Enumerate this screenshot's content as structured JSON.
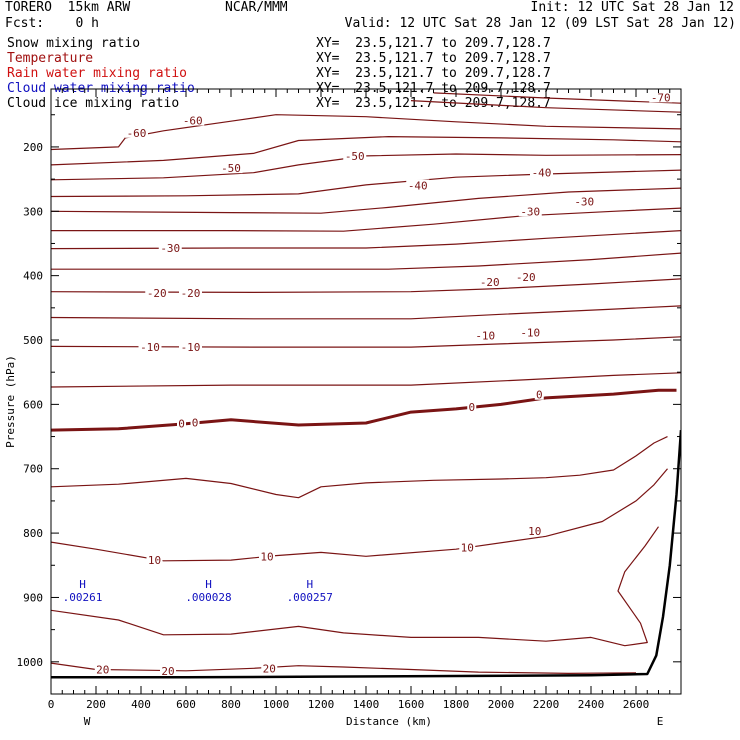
{
  "header": {
    "model": "TORERO  15km ARW",
    "center": "NCAR/MMM",
    "init": "Init: 12 UTC Sat 28 Jan 12",
    "fcst": "Fcst:    0 h",
    "valid": "Valid: 12 UTC Sat 28 Jan 12 (09 LST Sat 28 Jan 12)"
  },
  "fields": [
    {
      "name": "Snow mixing ratio",
      "xy": "XY=  23.5,121.7 to 209.7,128.7",
      "color": "#000000"
    },
    {
      "name": "Temperature",
      "xy": "XY=  23.5,121.7 to 209.7,128.7",
      "color": "#a01010"
    },
    {
      "name": "Rain water mixing ratio",
      "xy": "XY=  23.5,121.7 to 209.7,128.7",
      "color": "#d01010"
    },
    {
      "name": "Cloud water mixing ratio",
      "xy": "XY=  23.5,121.7 to 209.7,128.7",
      "color": "#1010c0"
    },
    {
      "name": "Cloud ice mixing ratio",
      "xy": "XY=  23.5,121.7 to 209.7,128.7",
      "color": "#000000"
    }
  ],
  "chart_data": {
    "type": "cross-section contour",
    "xlabel": "Distance (km)",
    "ylabel": "Pressure (hPa)",
    "xlim": [
      0,
      2800
    ],
    "ylim": [
      1050,
      110
    ],
    "x_ticks": [
      0,
      200,
      400,
      600,
      800,
      1000,
      1200,
      1400,
      1600,
      1800,
      2000,
      2200,
      2400,
      2600
    ],
    "y_ticks": [
      200,
      300,
      400,
      500,
      600,
      700,
      800,
      900,
      1000
    ],
    "left_end_label": "W",
    "right_end_label": "E",
    "temperature_contours": [
      {
        "level": -70,
        "points": [
          [
            1700,
            116
          ],
          [
            2200,
            124
          ],
          [
            2800,
            132
          ]
        ]
      },
      {
        "level": -65,
        "points": [
          [
            1600,
            128
          ],
          [
            2200,
            139
          ],
          [
            2800,
            146
          ]
        ]
      },
      {
        "level": -60,
        "points": [
          [
            0,
            204
          ],
          [
            300,
            200
          ],
          [
            330,
            186
          ],
          [
            500,
            175
          ],
          [
            800,
            160
          ],
          [
            1000,
            150
          ],
          [
            1400,
            153
          ],
          [
            1800,
            161
          ],
          [
            2200,
            168
          ],
          [
            2800,
            172
          ]
        ]
      },
      {
        "level": -55,
        "points": [
          [
            0,
            228
          ],
          [
            500,
            221
          ],
          [
            900,
            210
          ],
          [
            1100,
            190
          ],
          [
            1500,
            184
          ],
          [
            2000,
            186
          ],
          [
            2500,
            189
          ],
          [
            2800,
            192
          ]
        ]
      },
      {
        "level": -50,
        "points": [
          [
            0,
            251
          ],
          [
            500,
            248
          ],
          [
            900,
            240
          ],
          [
            1100,
            228
          ],
          [
            1400,
            214
          ],
          [
            1800,
            211
          ],
          [
            2200,
            213
          ],
          [
            2800,
            212
          ]
        ]
      },
      {
        "level": -45,
        "points": [
          [
            0,
            277
          ],
          [
            600,
            276
          ],
          [
            1100,
            273
          ],
          [
            1400,
            259
          ],
          [
            1800,
            247
          ],
          [
            2200,
            242
          ],
          [
            2800,
            236
          ]
        ]
      },
      {
        "level": -40,
        "points": [
          [
            0,
            300
          ],
          [
            800,
            302
          ],
          [
            1200,
            303
          ],
          [
            1500,
            294
          ],
          [
            1900,
            280
          ],
          [
            2300,
            270
          ],
          [
            2800,
            264
          ]
        ]
      },
      {
        "level": -35,
        "points": [
          [
            0,
            330
          ],
          [
            800,
            330
          ],
          [
            1300,
            331
          ],
          [
            1700,
            320
          ],
          [
            2100,
            307
          ],
          [
            2500,
            300
          ],
          [
            2800,
            295
          ]
        ]
      },
      {
        "level": -30,
        "points": [
          [
            0,
            358
          ],
          [
            800,
            357
          ],
          [
            1400,
            357
          ],
          [
            1800,
            351
          ],
          [
            2200,
            342
          ],
          [
            2800,
            330
          ]
        ]
      },
      {
        "level": -25,
        "points": [
          [
            0,
            390
          ],
          [
            900,
            390
          ],
          [
            1500,
            390
          ],
          [
            1900,
            385
          ],
          [
            2400,
            375
          ],
          [
            2800,
            365
          ]
        ]
      },
      {
        "level": -20,
        "points": [
          [
            0,
            425
          ],
          [
            900,
            426
          ],
          [
            1600,
            425
          ],
          [
            2000,
            420
          ],
          [
            2400,
            413
          ],
          [
            2800,
            405
          ]
        ]
      },
      {
        "level": -15,
        "points": [
          [
            0,
            465
          ],
          [
            900,
            467
          ],
          [
            1600,
            467
          ],
          [
            2000,
            460
          ],
          [
            2500,
            452
          ],
          [
            2800,
            447
          ]
        ]
      },
      {
        "level": -10,
        "points": [
          [
            0,
            510
          ],
          [
            900,
            511
          ],
          [
            1600,
            511
          ],
          [
            2000,
            506
          ],
          [
            2500,
            500
          ],
          [
            2800,
            495
          ]
        ]
      },
      {
        "level": -5,
        "points": [
          [
            0,
            573
          ],
          [
            800,
            570
          ],
          [
            1600,
            570
          ],
          [
            2100,
            562
          ],
          [
            2500,
            555
          ],
          [
            2800,
            551
          ]
        ]
      },
      {
        "level": 0,
        "points": [
          [
            0,
            640
          ],
          [
            300,
            638
          ],
          [
            600,
            630
          ],
          [
            800,
            624
          ],
          [
            1100,
            632
          ],
          [
            1400,
            629
          ],
          [
            1600,
            612
          ],
          [
            1800,
            607
          ],
          [
            2000,
            600
          ],
          [
            2200,
            590
          ],
          [
            2500,
            584
          ],
          [
            2700,
            578
          ],
          [
            2780,
            578
          ]
        ]
      },
      {
        "level": 5,
        "points": [
          [
            0,
            728
          ],
          [
            300,
            724
          ],
          [
            600,
            715
          ],
          [
            800,
            723
          ],
          [
            1000,
            740
          ],
          [
            1100,
            745
          ],
          [
            1200,
            728
          ],
          [
            1400,
            722
          ],
          [
            1700,
            718
          ],
          [
            2000,
            716
          ],
          [
            2200,
            714
          ],
          [
            2350,
            710
          ],
          [
            2500,
            702
          ],
          [
            2600,
            680
          ],
          [
            2680,
            660
          ],
          [
            2740,
            650
          ]
        ]
      },
      {
        "level": 10,
        "points": [
          [
            0,
            814
          ],
          [
            200,
            825
          ],
          [
            500,
            843
          ],
          [
            800,
            842
          ],
          [
            1000,
            835
          ],
          [
            1200,
            830
          ],
          [
            1400,
            836
          ],
          [
            1800,
            825
          ],
          [
            2200,
            805
          ],
          [
            2450,
            782
          ],
          [
            2600,
            750
          ],
          [
            2680,
            725
          ],
          [
            2740,
            700
          ]
        ]
      },
      {
        "level": 15,
        "points": [
          [
            0,
            920
          ],
          [
            300,
            935
          ],
          [
            500,
            958
          ],
          [
            800,
            957
          ],
          [
            1100,
            945
          ],
          [
            1300,
            955
          ],
          [
            1600,
            962
          ],
          [
            1900,
            962
          ],
          [
            2200,
            968
          ],
          [
            2400,
            962
          ],
          [
            2550,
            975
          ],
          [
            2650,
            970
          ],
          [
            2620,
            940
          ],
          [
            2520,
            890
          ],
          [
            2550,
            860
          ],
          [
            2640,
            820
          ],
          [
            2700,
            790
          ]
        ]
      },
      {
        "level": 20,
        "points": [
          [
            0,
            1002
          ],
          [
            200,
            1012
          ],
          [
            600,
            1014
          ],
          [
            900,
            1010
          ],
          [
            1100,
            1006
          ],
          [
            1300,
            1008
          ],
          [
            1600,
            1012
          ],
          [
            1900,
            1016
          ],
          [
            2300,
            1018
          ],
          [
            2600,
            1017
          ]
        ]
      }
    ],
    "temperature_labels": [
      {
        "text": "-70",
        "x": 2710,
        "y": 123
      },
      {
        "text": "-60",
        "x": 380,
        "y": 178
      },
      {
        "text": "-60",
        "x": 630,
        "y": 159
      },
      {
        "text": "-50",
        "x": 800,
        "y": 233
      },
      {
        "text": "-50",
        "x": 1350,
        "y": 214
      },
      {
        "text": "-40",
        "x": 1630,
        "y": 260
      },
      {
        "text": "-40",
        "x": 2180,
        "y": 240
      },
      {
        "text": "-30",
        "x": 530,
        "y": 357
      },
      {
        "text": "-30",
        "x": 2130,
        "y": 300
      },
      {
        "text": "-30",
        "x": 2370,
        "y": 285
      },
      {
        "text": "-20",
        "x": 470,
        "y": 427
      },
      {
        "text": "-20",
        "x": 620,
        "y": 427
      },
      {
        "text": "-20",
        "x": 1950,
        "y": 410
      },
      {
        "text": "-20",
        "x": 2110,
        "y": 402
      },
      {
        "text": "-10",
        "x": 440,
        "y": 511
      },
      {
        "text": "-10",
        "x": 620,
        "y": 511
      },
      {
        "text": "-10",
        "x": 1930,
        "y": 493
      },
      {
        "text": "-10",
        "x": 2130,
        "y": 488
      },
      {
        "text": "0",
        "x": 580,
        "y": 630
      },
      {
        "text": "0",
        "x": 640,
        "y": 628
      },
      {
        "text": "0",
        "x": 1870,
        "y": 604
      },
      {
        "text": "0",
        "x": 2170,
        "y": 585
      },
      {
        "text": "10",
        "x": 460,
        "y": 842
      },
      {
        "text": "10",
        "x": 960,
        "y": 836
      },
      {
        "text": "10",
        "x": 1850,
        "y": 822
      },
      {
        "text": "10",
        "x": 2150,
        "y": 797
      },
      {
        "text": "20",
        "x": 230,
        "y": 1012
      },
      {
        "text": "20",
        "x": 520,
        "y": 1014
      },
      {
        "text": "20",
        "x": 970,
        "y": 1010
      }
    ],
    "highs": [
      {
        "text": "H",
        "value": ".00261",
        "x": 140,
        "y": 885
      },
      {
        "text": "H",
        "value": ".000028",
        "x": 700,
        "y": 885
      },
      {
        "text": "H",
        "value": ".000257",
        "x": 1150,
        "y": 885
      }
    ],
    "terrain": [
      [
        0,
        1024
      ],
      [
        600,
        1024
      ],
      [
        1200,
        1023
      ],
      [
        1800,
        1022
      ],
      [
        2400,
        1021
      ],
      [
        2650,
        1019
      ],
      [
        2690,
        990
      ],
      [
        2720,
        930
      ],
      [
        2750,
        850
      ],
      [
        2780,
        740
      ],
      [
        2800,
        640
      ]
    ]
  }
}
